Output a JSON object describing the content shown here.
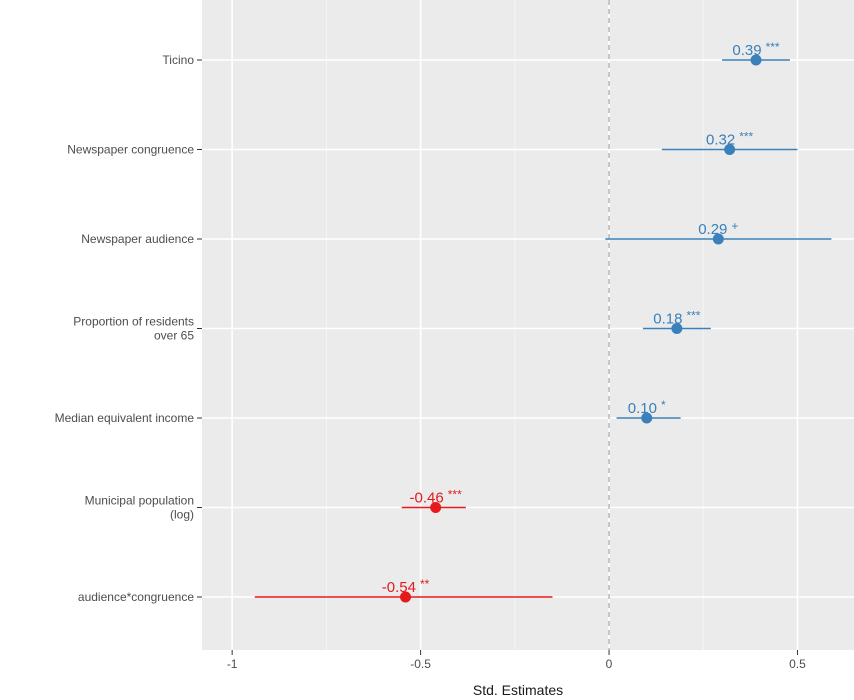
{
  "chart_data": {
    "type": "scatter",
    "xlabel": "Std. Estimates",
    "xlim": [
      -1.08,
      0.65
    ],
    "x_ticks": [
      -1,
      -0.5,
      0,
      0.5
    ],
    "x_tick_labels": [
      "-1",
      "-0.5",
      "0",
      "0.5"
    ],
    "grid": true,
    "reference_line": 0,
    "colors": {
      "positive": "#3a80ba",
      "negative": "#e41a1c"
    },
    "terms": [
      {
        "label": [
          "Ticino"
        ],
        "estimate": 0.39,
        "ci": [
          0.3,
          0.48
        ],
        "est_text": "0.39",
        "sig": "***",
        "sign": "positive"
      },
      {
        "label": [
          "Newspaper congruence"
        ],
        "estimate": 0.32,
        "ci": [
          0.14,
          0.5
        ],
        "est_text": "0.32",
        "sig": "***",
        "sign": "positive"
      },
      {
        "label": [
          "Newspaper audience"
        ],
        "estimate": 0.29,
        "ci": [
          -0.01,
          0.59
        ],
        "est_text": "0.29",
        "sig": "+",
        "sign": "positive"
      },
      {
        "label": [
          "Proportion of residents",
          "over 65"
        ],
        "estimate": 0.18,
        "ci": [
          0.09,
          0.27
        ],
        "est_text": "0.18",
        "sig": "***",
        "sign": "positive"
      },
      {
        "label": [
          "Median equivalent income"
        ],
        "estimate": 0.1,
        "ci": [
          0.02,
          0.19
        ],
        "est_text": "0.10",
        "sig": "*",
        "sign": "positive"
      },
      {
        "label": [
          "Municipal population",
          "(log)"
        ],
        "estimate": -0.46,
        "ci": [
          -0.55,
          -0.38
        ],
        "est_text": "-0.46",
        "sig": "***",
        "sign": "negative"
      },
      {
        "label": [
          "audience*congruence"
        ],
        "estimate": -0.54,
        "ci": [
          -0.94,
          -0.15
        ],
        "est_text": "-0.54",
        "sig": "**",
        "sign": "negative"
      }
    ]
  }
}
